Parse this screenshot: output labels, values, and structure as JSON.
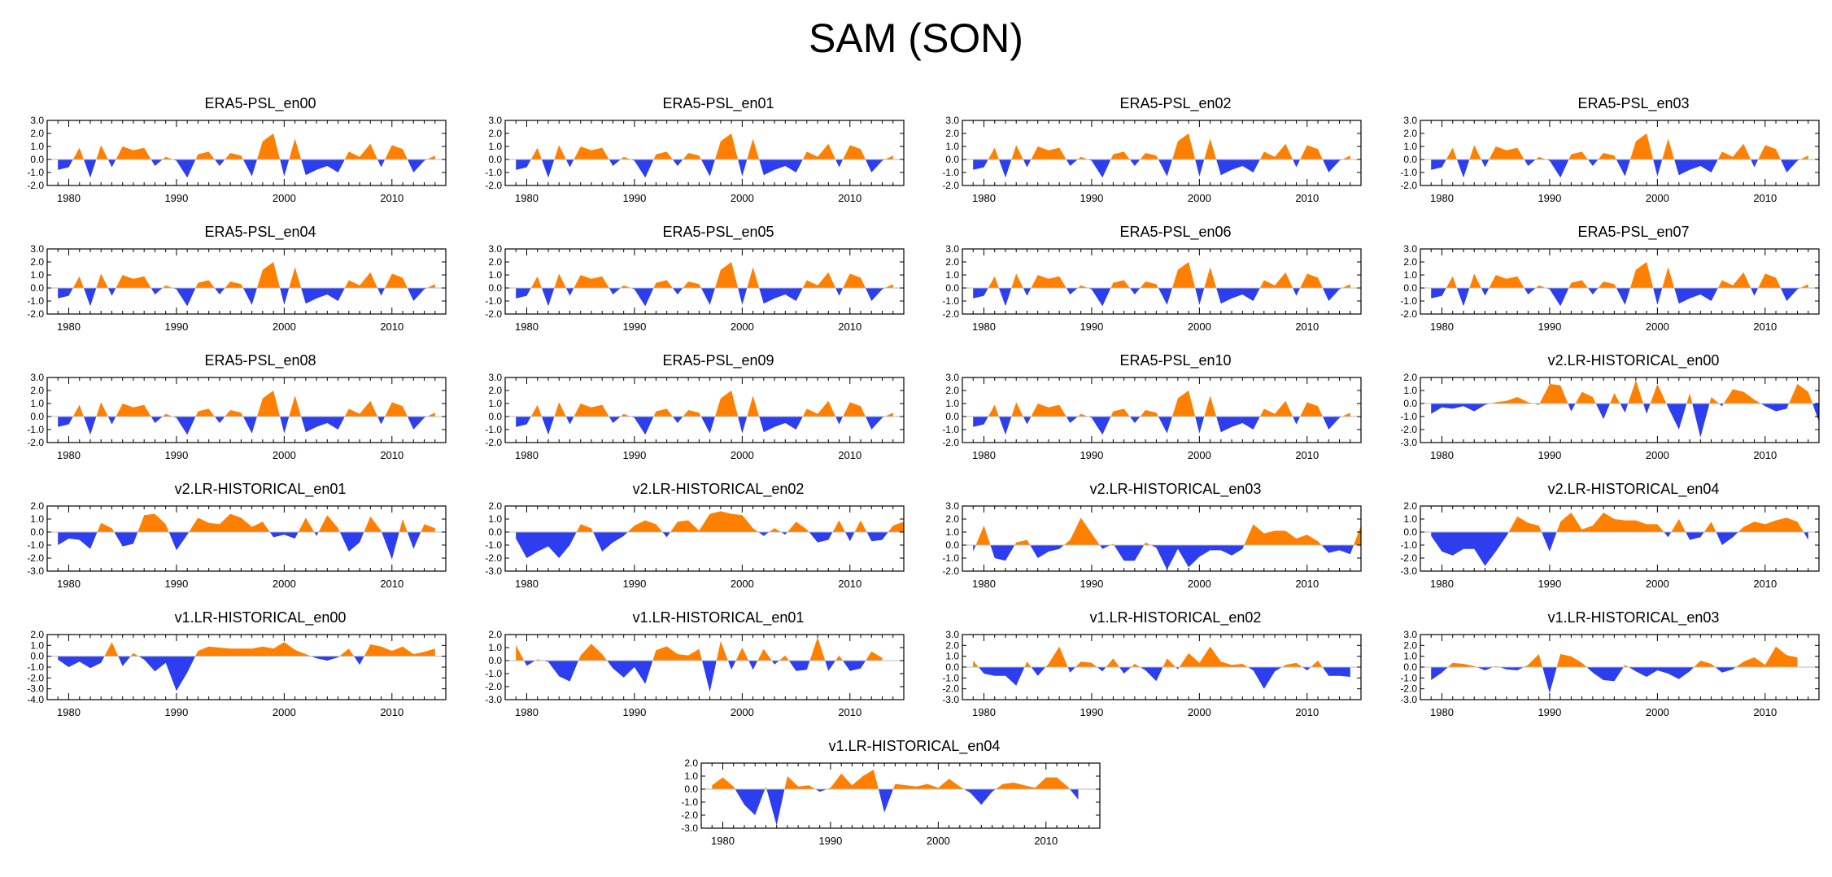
{
  "title": "SAM (SON)",
  "colors": {
    "positive": "#ff8000",
    "negative": "#2c3ef0",
    "axis": "#000000",
    "zero_line": "#bdbdbd"
  },
  "chart_data": [
    {
      "type": "area",
      "title": "ERA5-PSL_en00",
      "x_start": 1979,
      "x_ticks": [
        1980,
        1990,
        2000,
        2010
      ],
      "ylim": [
        -2,
        3
      ],
      "y_ticks": [
        "3.0",
        "2.0",
        "1.0",
        "0.0",
        "-1.0",
        "-2.0"
      ],
      "values": [
        -0.8,
        -0.6,
        0.9,
        -1.4,
        1.1,
        -0.6,
        1.0,
        0.7,
        0.9,
        -0.5,
        0.2,
        -0.1,
        -1.4,
        0.4,
        0.6,
        -0.5,
        0.5,
        0.3,
        -1.3,
        1.4,
        2.0,
        -1.3,
        1.6,
        -1.2,
        -0.8,
        -0.5,
        -1.0,
        0.6,
        0.2,
        1.2,
        -0.6,
        1.1,
        0.8,
        -1.0,
        -0.1,
        0.3
      ]
    },
    {
      "type": "area",
      "title": "ERA5-PSL_en01",
      "x_start": 1979,
      "x_ticks": [
        1980,
        1990,
        2000,
        2010
      ],
      "ylim": [
        -2,
        3
      ],
      "y_ticks": [
        "3.0",
        "2.0",
        "1.0",
        "0.0",
        "-1.0",
        "-2.0"
      ],
      "values": [
        -0.8,
        -0.6,
        0.9,
        -1.4,
        1.1,
        -0.6,
        1.0,
        0.7,
        0.9,
        -0.5,
        0.2,
        -0.1,
        -1.4,
        0.4,
        0.6,
        -0.5,
        0.5,
        0.3,
        -1.3,
        1.4,
        2.0,
        -1.3,
        1.6,
        -1.2,
        -0.8,
        -0.5,
        -1.0,
        0.6,
        0.2,
        1.2,
        -0.6,
        1.1,
        0.8,
        -1.0,
        -0.1,
        0.3
      ]
    },
    {
      "type": "area",
      "title": "ERA5-PSL_en02",
      "x_start": 1979,
      "x_ticks": [
        1980,
        1990,
        2000,
        2010
      ],
      "ylim": [
        -2,
        3
      ],
      "y_ticks": [
        "3.0",
        "2.0",
        "1.0",
        "0.0",
        "-1.0",
        "-2.0"
      ],
      "values": [
        -0.8,
        -0.6,
        0.9,
        -1.4,
        1.1,
        -0.6,
        1.0,
        0.7,
        0.9,
        -0.5,
        0.2,
        -0.1,
        -1.4,
        0.4,
        0.6,
        -0.5,
        0.5,
        0.3,
        -1.3,
        1.4,
        2.0,
        -1.3,
        1.6,
        -1.2,
        -0.8,
        -0.5,
        -1.0,
        0.6,
        0.2,
        1.2,
        -0.6,
        1.1,
        0.8,
        -1.0,
        -0.1,
        0.3
      ]
    },
    {
      "type": "area",
      "title": "ERA5-PSL_en03",
      "x_start": 1979,
      "x_ticks": [
        1980,
        1990,
        2000,
        2010
      ],
      "ylim": [
        -2,
        3
      ],
      "y_ticks": [
        "3.0",
        "2.0",
        "1.0",
        "0.0",
        "-1.0",
        "-2.0"
      ],
      "values": [
        -0.8,
        -0.6,
        0.9,
        -1.4,
        1.1,
        -0.6,
        1.0,
        0.7,
        0.9,
        -0.5,
        0.2,
        -0.1,
        -1.4,
        0.4,
        0.6,
        -0.5,
        0.5,
        0.3,
        -1.3,
        1.4,
        2.0,
        -1.3,
        1.6,
        -1.2,
        -0.8,
        -0.5,
        -1.0,
        0.6,
        0.2,
        1.2,
        -0.6,
        1.1,
        0.8,
        -1.0,
        -0.1,
        0.3
      ]
    },
    {
      "type": "area",
      "title": "ERA5-PSL_en04",
      "x_start": 1979,
      "x_ticks": [
        1980,
        1990,
        2000,
        2010
      ],
      "ylim": [
        -2,
        3
      ],
      "y_ticks": [
        "3.0",
        "2.0",
        "1.0",
        "0.0",
        "-1.0",
        "-2.0"
      ],
      "values": [
        -0.8,
        -0.6,
        0.9,
        -1.4,
        1.1,
        -0.6,
        1.0,
        0.7,
        0.9,
        -0.5,
        0.2,
        -0.1,
        -1.4,
        0.4,
        0.6,
        -0.5,
        0.5,
        0.3,
        -1.3,
        1.4,
        2.0,
        -1.3,
        1.6,
        -1.2,
        -0.8,
        -0.5,
        -1.0,
        0.6,
        0.2,
        1.2,
        -0.6,
        1.1,
        0.8,
        -1.0,
        -0.1,
        0.3
      ]
    },
    {
      "type": "area",
      "title": "ERA5-PSL_en05",
      "x_start": 1979,
      "x_ticks": [
        1980,
        1990,
        2000,
        2010
      ],
      "ylim": [
        -2,
        3
      ],
      "y_ticks": [
        "3.0",
        "2.0",
        "1.0",
        "0.0",
        "-1.0",
        "-2.0"
      ],
      "values": [
        -0.8,
        -0.6,
        0.9,
        -1.4,
        1.1,
        -0.6,
        1.0,
        0.7,
        0.9,
        -0.5,
        0.2,
        -0.1,
        -1.4,
        0.4,
        0.6,
        -0.5,
        0.5,
        0.3,
        -1.3,
        1.4,
        2.0,
        -1.3,
        1.6,
        -1.2,
        -0.8,
        -0.5,
        -1.0,
        0.6,
        0.2,
        1.2,
        -0.6,
        1.1,
        0.8,
        -1.0,
        -0.1,
        0.3
      ]
    },
    {
      "type": "area",
      "title": "ERA5-PSL_en06",
      "x_start": 1979,
      "x_ticks": [
        1980,
        1990,
        2000,
        2010
      ],
      "ylim": [
        -2,
        3
      ],
      "y_ticks": [
        "3.0",
        "2.0",
        "1.0",
        "0.0",
        "-1.0",
        "-2.0"
      ],
      "values": [
        -0.8,
        -0.6,
        0.9,
        -1.4,
        1.1,
        -0.6,
        1.0,
        0.7,
        0.9,
        -0.5,
        0.2,
        -0.1,
        -1.4,
        0.4,
        0.6,
        -0.5,
        0.5,
        0.3,
        -1.3,
        1.4,
        2.0,
        -1.3,
        1.6,
        -1.2,
        -0.8,
        -0.5,
        -1.0,
        0.6,
        0.2,
        1.2,
        -0.6,
        1.1,
        0.8,
        -1.0,
        -0.1,
        0.3
      ]
    },
    {
      "type": "area",
      "title": "ERA5-PSL_en07",
      "x_start": 1979,
      "x_ticks": [
        1980,
        1990,
        2000,
        2010
      ],
      "ylim": [
        -2,
        3
      ],
      "y_ticks": [
        "3.0",
        "2.0",
        "1.0",
        "0.0",
        "-1.0",
        "-2.0"
      ],
      "values": [
        -0.8,
        -0.6,
        0.9,
        -1.4,
        1.1,
        -0.6,
        1.0,
        0.7,
        0.9,
        -0.5,
        0.2,
        -0.1,
        -1.4,
        0.4,
        0.6,
        -0.5,
        0.5,
        0.3,
        -1.3,
        1.4,
        2.0,
        -1.3,
        1.6,
        -1.2,
        -0.8,
        -0.5,
        -1.0,
        0.6,
        0.2,
        1.2,
        -0.6,
        1.1,
        0.8,
        -1.0,
        -0.1,
        0.3
      ]
    },
    {
      "type": "area",
      "title": "ERA5-PSL_en08",
      "x_start": 1979,
      "x_ticks": [
        1980,
        1990,
        2000,
        2010
      ],
      "ylim": [
        -2,
        3
      ],
      "y_ticks": [
        "3.0",
        "2.0",
        "1.0",
        "0.0",
        "-1.0",
        "-2.0"
      ],
      "values": [
        -0.8,
        -0.6,
        0.9,
        -1.4,
        1.1,
        -0.6,
        1.0,
        0.7,
        0.9,
        -0.5,
        0.2,
        -0.1,
        -1.4,
        0.4,
        0.6,
        -0.5,
        0.5,
        0.3,
        -1.3,
        1.4,
        2.0,
        -1.3,
        1.6,
        -1.2,
        -0.8,
        -0.5,
        -1.0,
        0.6,
        0.2,
        1.2,
        -0.6,
        1.1,
        0.8,
        -1.0,
        -0.1,
        0.3
      ]
    },
    {
      "type": "area",
      "title": "ERA5-PSL_en09",
      "x_start": 1979,
      "x_ticks": [
        1980,
        1990,
        2000,
        2010
      ],
      "ylim": [
        -2,
        3
      ],
      "y_ticks": [
        "3.0",
        "2.0",
        "1.0",
        "0.0",
        "-1.0",
        "-2.0"
      ],
      "values": [
        -0.8,
        -0.6,
        0.9,
        -1.4,
        1.1,
        -0.6,
        1.0,
        0.7,
        0.9,
        -0.5,
        0.2,
        -0.1,
        -1.4,
        0.4,
        0.6,
        -0.5,
        0.5,
        0.3,
        -1.3,
        1.4,
        2.0,
        -1.3,
        1.6,
        -1.2,
        -0.8,
        -0.5,
        -1.0,
        0.6,
        0.2,
        1.2,
        -0.6,
        1.1,
        0.8,
        -1.0,
        -0.1,
        0.3
      ]
    },
    {
      "type": "area",
      "title": "ERA5-PSL_en10",
      "x_start": 1979,
      "x_ticks": [
        1980,
        1990,
        2000,
        2010
      ],
      "ylim": [
        -2,
        3
      ],
      "y_ticks": [
        "3.0",
        "2.0",
        "1.0",
        "0.0",
        "-1.0",
        "-2.0"
      ],
      "values": [
        -0.8,
        -0.6,
        0.9,
        -1.4,
        1.1,
        -0.6,
        1.0,
        0.7,
        0.9,
        -0.5,
        0.2,
        -0.1,
        -1.4,
        0.4,
        0.6,
        -0.5,
        0.5,
        0.3,
        -1.3,
        1.4,
        2.0,
        -1.3,
        1.6,
        -1.2,
        -0.8,
        -0.5,
        -1.0,
        0.6,
        0.2,
        1.2,
        -0.6,
        1.1,
        0.8,
        -1.0,
        -0.1,
        0.3
      ]
    },
    {
      "type": "area",
      "title": "v2.LR-HISTORICAL_en00",
      "x_start": 1979,
      "x_ticks": [
        1980,
        1990,
        2000,
        2010
      ],
      "ylim": [
        -3,
        2
      ],
      "y_ticks": [
        "2.0",
        "1.0",
        "0.0",
        "-1.0",
        "-2.0",
        "-3.0"
      ],
      "values": [
        -0.8,
        -0.3,
        -0.4,
        -0.2,
        -0.6,
        -0.1,
        0.1,
        0.2,
        0.5,
        0.1,
        -0.1,
        1.5,
        1.4,
        -0.6,
        0.9,
        0.5,
        -1.2,
        0.8,
        -0.7,
        1.8,
        -0.8,
        1.5,
        -0.3,
        -2.0,
        0.8,
        -2.6,
        0.5,
        -0.2,
        1.1,
        0.9,
        0.3,
        -0.2,
        -0.6,
        -0.4,
        1.5,
        0.9,
        -1.4
      ]
    },
    {
      "type": "area",
      "title": "v2.LR-HISTORICAL_en01",
      "x_start": 1979,
      "x_ticks": [
        1980,
        1990,
        2000,
        2010
      ],
      "ylim": [
        -3,
        2
      ],
      "y_ticks": [
        "2.0",
        "1.0",
        "0.0",
        "-1.0",
        "-2.0",
        "-3.0"
      ],
      "values": [
        -1.0,
        -0.5,
        -0.6,
        -1.3,
        0.7,
        0.3,
        -1.1,
        -0.9,
        1.3,
        1.4,
        0.6,
        -1.4,
        -0.2,
        1.1,
        0.7,
        0.6,
        1.4,
        1.1,
        0.4,
        0.8,
        -0.4,
        -0.2,
        -0.5,
        1.1,
        -0.3,
        1.3,
        0.3,
        -1.5,
        -0.8,
        1.2,
        0.1,
        -2.1,
        1.0,
        -1.3,
        0.6,
        0.3
      ]
    },
    {
      "type": "area",
      "title": "v2.LR-HISTORICAL_en02",
      "x_start": 1979,
      "x_ticks": [
        1980,
        1990,
        2000,
        2010
      ],
      "ylim": [
        -3,
        2
      ],
      "y_ticks": [
        "2.0",
        "1.0",
        "0.0",
        "-1.0",
        "-2.0",
        "-3.0"
      ],
      "values": [
        -0.5,
        -2.0,
        -1.5,
        -1.1,
        -2.0,
        -1.0,
        0.6,
        0.3,
        -1.5,
        -0.8,
        -0.3,
        0.5,
        0.9,
        0.6,
        -0.4,
        0.8,
        0.9,
        0.1,
        1.4,
        1.6,
        1.4,
        1.3,
        0.3,
        -0.3,
        0.3,
        -0.2,
        0.8,
        0.2,
        -0.8,
        -0.6,
        0.9,
        -0.7,
        0.9,
        -0.7,
        -0.6,
        0.5,
        0.8
      ]
    },
    {
      "type": "area",
      "title": "v2.LR-HISTORICAL_en03",
      "x_start": 1979,
      "x_ticks": [
        1980,
        1990,
        2000,
        2010
      ],
      "ylim": [
        -2,
        3
      ],
      "y_ticks": [
        "3.0",
        "2.0",
        "1.0",
        "0.0",
        "-1.0",
        "-2.0"
      ],
      "values": [
        -0.5,
        1.5,
        -1.0,
        -1.2,
        0.2,
        0.4,
        -1.0,
        -0.5,
        -0.3,
        0.4,
        2.1,
        0.9,
        -0.3,
        0.1,
        -1.2,
        -1.2,
        0.2,
        -0.2,
        -1.9,
        -0.3,
        -1.7,
        -0.9,
        -0.4,
        -0.4,
        -0.8,
        -0.3,
        1.6,
        0.9,
        1.1,
        1.1,
        0.5,
        0.8,
        0.3,
        -0.6,
        -0.4,
        -0.7,
        1.5
      ]
    },
    {
      "type": "area",
      "title": "v2.LR-HISTORICAL_en04",
      "x_start": 1979,
      "x_ticks": [
        1980,
        1990,
        2000,
        2010
      ],
      "ylim": [
        -3,
        2
      ],
      "y_ticks": [
        "2.0",
        "1.0",
        "0.0",
        "-1.0",
        "-2.0",
        "-3.0"
      ],
      "values": [
        -0.3,
        -1.5,
        -1.8,
        -1.3,
        -1.3,
        -2.6,
        -1.5,
        -0.3,
        1.2,
        0.7,
        0.5,
        -1.5,
        0.8,
        1.5,
        0.2,
        0.5,
        1.5,
        1.0,
        0.9,
        0.9,
        0.6,
        0.6,
        -0.4,
        1.0,
        -0.6,
        -0.4,
        0.8,
        -1.0,
        -0.4,
        0.4,
        0.8,
        0.6,
        0.9,
        1.1,
        0.8,
        -0.6
      ]
    },
    {
      "type": "area",
      "title": "v1.LR-HISTORICAL_en00",
      "x_start": 1979,
      "x_ticks": [
        1980,
        1990,
        2000,
        2010
      ],
      "ylim": [
        -4,
        2
      ],
      "y_ticks": [
        "2.0",
        "1.0",
        "0.0",
        "-1.0",
        "-2.0",
        "-3.0",
        "-4.0"
      ],
      "values": [
        -0.3,
        -1.0,
        -0.5,
        -1.1,
        -0.6,
        1.3,
        -0.9,
        0.3,
        -0.3,
        -1.4,
        -0.6,
        -3.2,
        -1.5,
        0.5,
        0.9,
        0.8,
        0.7,
        0.7,
        0.7,
        0.9,
        0.7,
        1.3,
        0.6,
        0.2,
        -0.2,
        -0.4,
        -0.1,
        0.7,
        -0.8,
        1.1,
        0.9,
        0.5,
        0.9,
        0.2,
        0.4,
        0.7
      ]
    },
    {
      "type": "area",
      "title": "v1.LR-HISTORICAL_en01",
      "x_start": 1979,
      "x_ticks": [
        1980,
        1990,
        2000,
        2010
      ],
      "ylim": [
        -3,
        2
      ],
      "y_ticks": [
        "2.0",
        "1.0",
        "0.0",
        "-1.0",
        "-2.0",
        "-3.0"
      ],
      "values": [
        1.2,
        -0.4,
        0.1,
        -0.1,
        -1.2,
        -1.6,
        0.4,
        1.3,
        0.5,
        -0.6,
        -1.3,
        -0.5,
        -1.8,
        0.8,
        1.1,
        0.5,
        0.4,
        0.9,
        -2.4,
        1.5,
        -0.7,
        1.0,
        -0.7,
        0.9,
        -0.3,
        0.4,
        -0.8,
        -0.7,
        1.8,
        -0.8,
        0.4,
        -0.8,
        -0.6,
        0.7,
        0.2
      ]
    },
    {
      "type": "area",
      "title": "v1.LR-HISTORICAL_en02",
      "x_start": 1979,
      "x_ticks": [
        1980,
        1990,
        2000,
        2010
      ],
      "ylim": [
        -3,
        3
      ],
      "y_ticks": [
        "3.0",
        "2.0",
        "1.0",
        "0.0",
        "-1.0",
        "-2.0",
        "-3.0"
      ],
      "values": [
        0.6,
        -0.6,
        -0.8,
        -0.8,
        -1.7,
        0.5,
        -0.8,
        0.3,
        1.9,
        -0.5,
        0.5,
        0.4,
        -0.4,
        0.8,
        -0.6,
        0.3,
        -0.3,
        -1.3,
        0.8,
        -0.2,
        1.3,
        0.4,
        1.9,
        0.5,
        0.2,
        0.3,
        -0.3,
        -2.0,
        -0.4,
        0.2,
        0.4,
        -0.3,
        0.6,
        -0.8,
        -0.8,
        -0.9
      ]
    },
    {
      "type": "area",
      "title": "v1.LR-HISTORICAL_en03",
      "x_start": 1979,
      "x_ticks": [
        1980,
        1990,
        2000,
        2010
      ],
      "ylim": [
        -3,
        3
      ],
      "y_ticks": [
        "3.0",
        "2.0",
        "1.0",
        "0.0",
        "-1.0",
        "-2.0",
        "-3.0"
      ],
      "values": [
        -1.2,
        -0.5,
        0.4,
        0.3,
        0.1,
        -0.3,
        0.1,
        -0.2,
        -0.3,
        0.2,
        1.2,
        -2.4,
        1.2,
        1.0,
        0.4,
        -0.5,
        -1.2,
        -1.3,
        0.2,
        -0.4,
        -0.9,
        -0.3,
        -0.6,
        -1.1,
        -0.4,
        0.6,
        0.3,
        -0.5,
        -0.2,
        0.5,
        0.9,
        0.2,
        1.9,
        1.1,
        0.9
      ]
    },
    {
      "type": "area",
      "title": "v1.LR-HISTORICAL_en04",
      "x_start": 1979,
      "x_ticks": [
        1980,
        1990,
        2000,
        2010
      ],
      "ylim": [
        -3,
        2
      ],
      "y_ticks": [
        "2.0",
        "1.0",
        "0.0",
        "-1.0",
        "-2.0",
        "-3.0"
      ],
      "values": [
        0.3,
        0.9,
        0.2,
        -1.2,
        -2.0,
        0.2,
        -2.8,
        1.0,
        0.2,
        0.3,
        -0.2,
        0.1,
        1.2,
        0.3,
        1.0,
        1.5,
        -1.8,
        0.4,
        0.3,
        0.2,
        0.4,
        0.1,
        0.8,
        0.2,
        -0.3,
        -1.2,
        -0.2,
        0.4,
        0.5,
        0.3,
        0.1,
        0.9,
        0.9,
        0.2,
        -0.8
      ]
    }
  ]
}
